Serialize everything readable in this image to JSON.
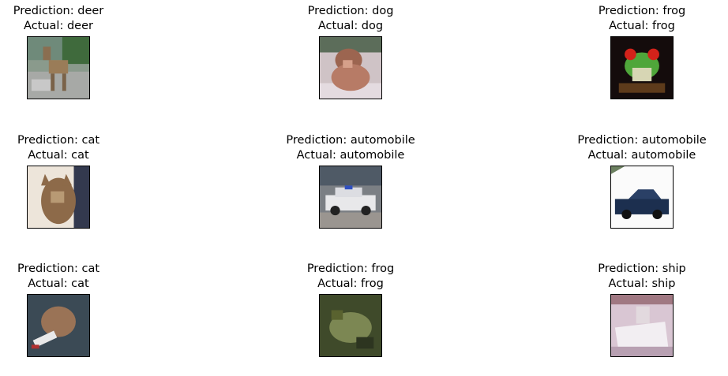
{
  "predictions": [
    {
      "prediction_text": "Prediction: deer",
      "actual_text": "Actual: deer",
      "icon": "deer-image"
    },
    {
      "prediction_text": "Prediction: dog",
      "actual_text": "Actual: dog",
      "icon": "dog-image"
    },
    {
      "prediction_text": "Prediction: frog",
      "actual_text": "Actual: frog",
      "icon": "frog-image"
    },
    {
      "prediction_text": "Prediction: cat",
      "actual_text": "Actual: cat",
      "icon": "cat-image"
    },
    {
      "prediction_text": "Prediction: automobile",
      "actual_text": "Actual: automobile",
      "icon": "police-car-image"
    },
    {
      "prediction_text": "Prediction: automobile",
      "actual_text": "Actual: automobile",
      "icon": "blue-car-image"
    },
    {
      "prediction_text": "Prediction: cat",
      "actual_text": "Actual: cat",
      "icon": "cat-image"
    },
    {
      "prediction_text": "Prediction: frog",
      "actual_text": "Actual: frog",
      "icon": "frog-image"
    },
    {
      "prediction_text": "Prediction: ship",
      "actual_text": "Actual: ship",
      "icon": "ship-image"
    }
  ]
}
